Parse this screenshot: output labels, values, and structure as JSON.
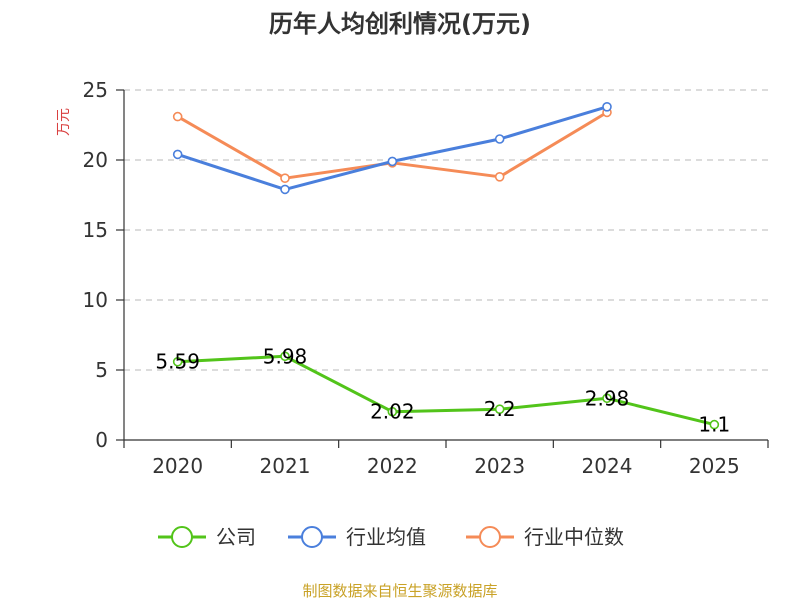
{
  "colors": {
    "company": "#52c41a",
    "industry_avg": "#4a7fdc",
    "industry_median": "#f58b57",
    "grid": "#c8c8c8",
    "axis": "#333333",
    "unit": "#d94040",
    "source": "#c9a227"
  },
  "chart_data": {
    "type": "line",
    "title": "历年人均创利情况(万元)",
    "ylabel": "万元",
    "xlabel": "",
    "categories": [
      "2020",
      "2021",
      "2022",
      "2023",
      "2024",
      "2025"
    ],
    "yticks": [
      "0",
      "5",
      "10",
      "15",
      "20",
      "25"
    ],
    "ylim": [
      0,
      25
    ],
    "grid": true,
    "legend_position": "bottom",
    "series": [
      {
        "name": "公司",
        "color_key": "company",
        "values": [
          5.59,
          5.98,
          2.02,
          2.2,
          2.98,
          1.1
        ],
        "labels": [
          "5.59",
          "5.98",
          "2.02",
          "2.2",
          "2.98",
          "1.1"
        ]
      },
      {
        "name": "行业均值",
        "color_key": "industry_avg",
        "values": [
          20.4,
          17.9,
          19.9,
          21.5,
          23.8,
          null
        ]
      },
      {
        "name": "行业中位数",
        "color_key": "industry_median",
        "values": [
          23.1,
          18.7,
          19.8,
          18.8,
          23.4,
          null
        ]
      }
    ]
  },
  "source": "制图数据来自恒生聚源数据库"
}
